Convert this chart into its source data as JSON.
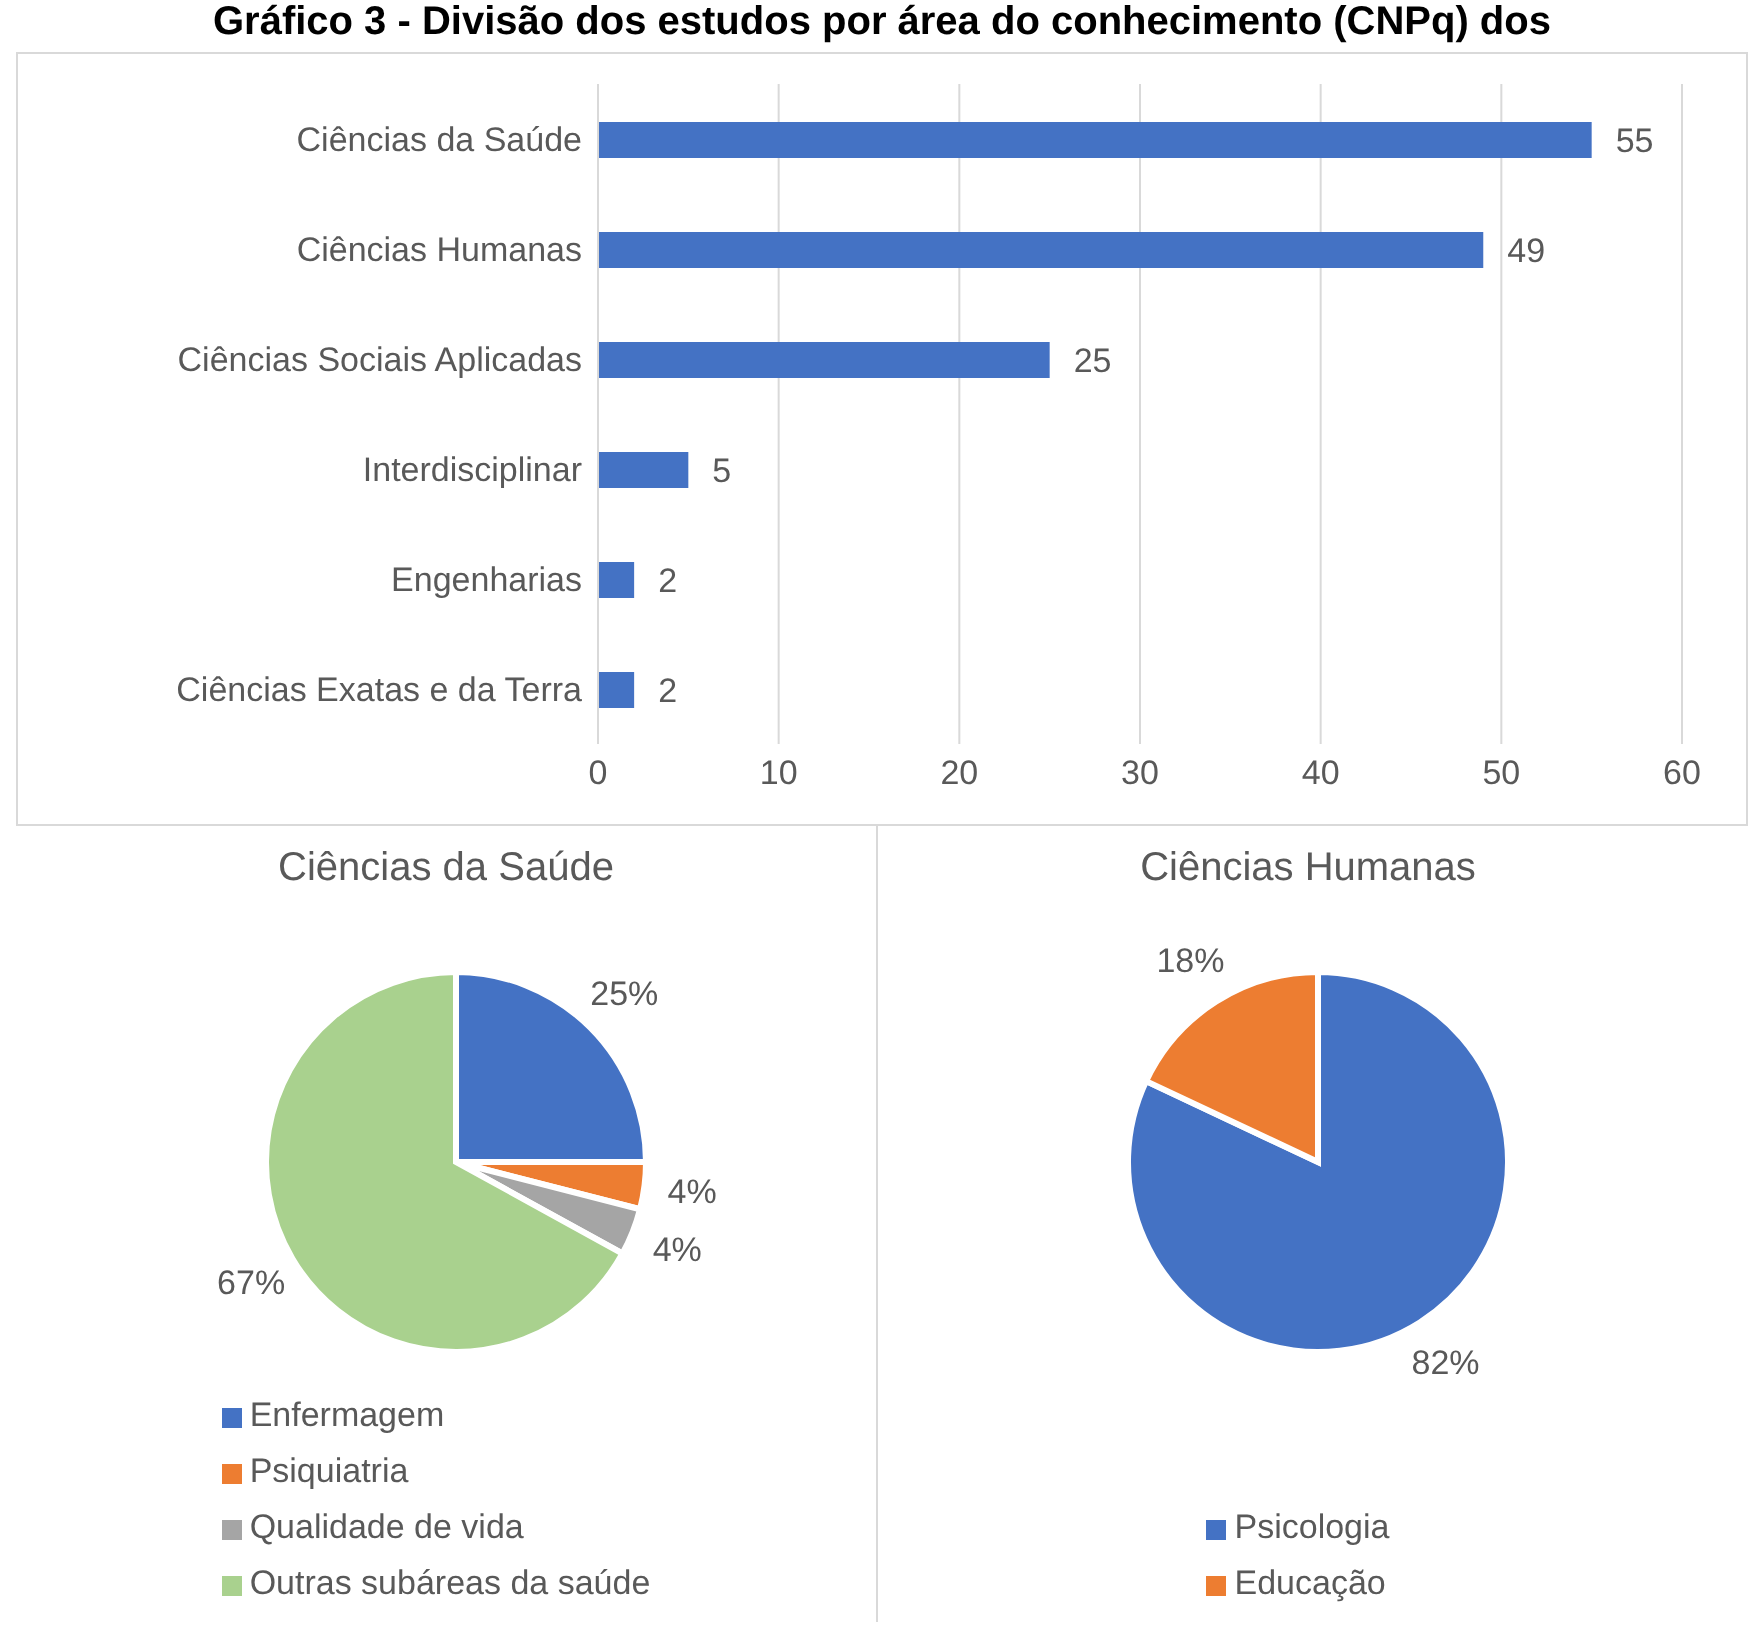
{
  "chart_data": [
    {
      "type": "bar",
      "orientation": "horizontal",
      "title": "Gráfico 3 - Divisão dos estudos por área do conhecimento (CNPq) dos",
      "categories": [
        "Ciências da Saúde",
        "Ciências Humanas",
        "Ciências Sociais Aplicadas",
        "Interdisciplinar",
        "Engenharias",
        "Ciências Exatas e da Terra"
      ],
      "values": [
        55,
        49,
        25,
        5,
        2,
        2
      ],
      "color": "#4472c4",
      "xlim": [
        0,
        60
      ],
      "xticks": [
        0,
        10,
        20,
        30,
        40,
        50,
        60
      ],
      "grid": "x",
      "data_labels": true
    },
    {
      "type": "pie",
      "title": "Ciências da Saúde",
      "categories": [
        "Enfermagem",
        "Psiquiatria",
        "Qualidade de vida",
        "Outras subáreas da saúde"
      ],
      "values": [
        25,
        4,
        4,
        67
      ],
      "colors": [
        "#4472c4",
        "#ed7d31",
        "#a5a5a5",
        "#a9d18e"
      ],
      "value_labels": [
        "25%",
        "4%",
        "4%",
        "67%"
      ],
      "legend": "bottom"
    },
    {
      "type": "pie",
      "title": "Ciências Humanas",
      "categories": [
        "Psicologia",
        "Educação"
      ],
      "values": [
        82,
        18
      ],
      "colors": [
        "#4472c4",
        "#ed7d31"
      ],
      "value_labels": [
        "82%",
        "18%"
      ],
      "legend": "bottom"
    }
  ]
}
